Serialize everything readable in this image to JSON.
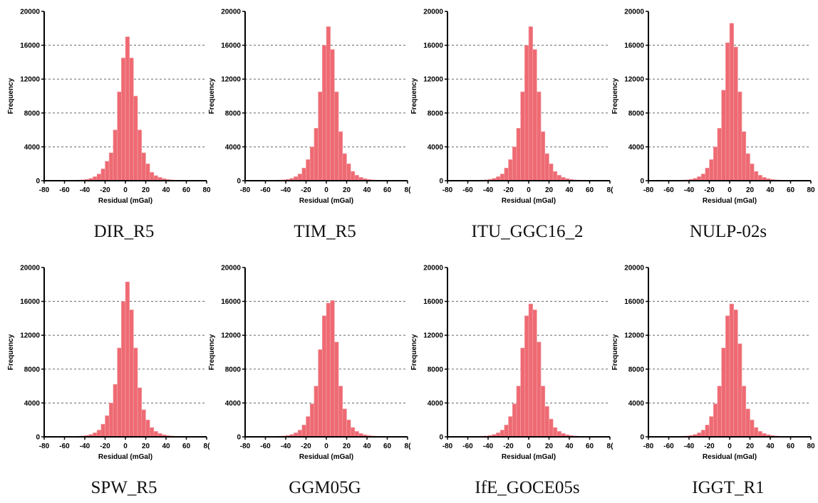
{
  "chart_data": [
    {
      "type": "bar",
      "title": "DIR_R5",
      "xlabel": "Residual (mGal)",
      "ylabel": "Frequency",
      "xlim": [
        -80,
        80
      ],
      "ylim": [
        0,
        20000
      ],
      "xticks": [
        "-80",
        "-60",
        "-40",
        "-20",
        "0",
        "20",
        "40",
        "60",
        "80"
      ],
      "yticks": [
        "0",
        "4000",
        "8000",
        "12000",
        "16000",
        "20000"
      ],
      "grid": "horizontal dashed",
      "bin_width": 4,
      "bin_starts": [
        -80,
        -76,
        -72,
        -68,
        -64,
        -60,
        -56,
        -52,
        -48,
        -44,
        -40,
        -36,
        -32,
        -28,
        -24,
        -20,
        -16,
        -12,
        -8,
        -4,
        0,
        4,
        8,
        12,
        16,
        20,
        24,
        28,
        32,
        36,
        40,
        44,
        48,
        52,
        56,
        60,
        64,
        68,
        72,
        76
      ],
      "values": [
        10,
        15,
        20,
        25,
        30,
        40,
        50,
        60,
        80,
        110,
        170,
        280,
        480,
        800,
        1400,
        2300,
        3300,
        6000,
        10500,
        14500,
        17000,
        14500,
        10000,
        6000,
        3300,
        2000,
        1000,
        600,
        400,
        250,
        160,
        100,
        70,
        50,
        40,
        30,
        20,
        15,
        10,
        10
      ],
      "colors": {
        "bar": "#ee6a73",
        "bar_edge": "#f4a5ab"
      }
    },
    {
      "type": "bar",
      "title": "TIM_R5",
      "xlabel": "Residual (mGal)",
      "ylabel": "Frequency",
      "xlim": [
        -80,
        80
      ],
      "ylim": [
        0,
        20000
      ],
      "xticks": [
        "-80",
        "-60",
        "-40",
        "-20",
        "0",
        "20",
        "40",
        "60",
        "8("
      ],
      "yticks": [
        "0",
        "4000",
        "8000",
        "12000",
        "16000",
        "20000"
      ],
      "grid": "horizontal dashed",
      "bin_width": 4,
      "bin_starts": [
        -80,
        -76,
        -72,
        -68,
        -64,
        -60,
        -56,
        -52,
        -48,
        -44,
        -40,
        -36,
        -32,
        -28,
        -24,
        -20,
        -16,
        -12,
        -8,
        -4,
        0,
        4,
        8,
        12,
        16,
        20,
        24,
        28,
        32,
        36,
        40,
        44,
        48,
        52,
        56,
        60,
        64,
        68,
        72,
        76
      ],
      "values": [
        10,
        15,
        20,
        25,
        30,
        40,
        50,
        60,
        80,
        110,
        170,
        280,
        480,
        800,
        1500,
        2500,
        4000,
        6200,
        10500,
        16000,
        18200,
        15500,
        10500,
        5800,
        3200,
        2000,
        1100,
        650,
        400,
        250,
        160,
        100,
        70,
        50,
        40,
        30,
        20,
        15,
        10,
        10
      ],
      "colors": {
        "bar": "#ee6a73",
        "bar_edge": "#f4a5ab"
      }
    },
    {
      "type": "bar",
      "title": "ITU_GGC16_2",
      "xlabel": "Residual (mGal)",
      "ylabel": "Frequency",
      "xlim": [
        -80,
        80
      ],
      "ylim": [
        0,
        20000
      ],
      "xticks": [
        "-80",
        "-60",
        "-40",
        "-20",
        "0",
        "20",
        "40",
        "60",
        "8("
      ],
      "yticks": [
        "0",
        "4000",
        "8000",
        "12000",
        "16000",
        "20000"
      ],
      "grid": "horizontal dashed",
      "bin_width": 4,
      "bin_starts": [
        -80,
        -76,
        -72,
        -68,
        -64,
        -60,
        -56,
        -52,
        -48,
        -44,
        -40,
        -36,
        -32,
        -28,
        -24,
        -20,
        -16,
        -12,
        -8,
        -4,
        0,
        4,
        8,
        12,
        16,
        20,
        24,
        28,
        32,
        36,
        40,
        44,
        48,
        52,
        56,
        60,
        64,
        68,
        72,
        76
      ],
      "values": [
        10,
        15,
        20,
        25,
        30,
        40,
        50,
        60,
        80,
        110,
        170,
        280,
        480,
        800,
        1500,
        2500,
        4000,
        6200,
        10500,
        16000,
        18200,
        15500,
        10500,
        5800,
        3200,
        2000,
        1100,
        650,
        400,
        250,
        160,
        100,
        70,
        50,
        40,
        30,
        20,
        15,
        10,
        10
      ],
      "colors": {
        "bar": "#ee6a73",
        "bar_edge": "#f4a5ab"
      }
    },
    {
      "type": "bar",
      "title": "NULP-02s",
      "xlabel": "Residual (mGal)",
      "ylabel": "Frequency",
      "xlim": [
        -80,
        80
      ],
      "ylim": [
        0,
        20000
      ],
      "xticks": [
        "-80",
        "-60",
        "-40",
        "-20",
        "0",
        "20",
        "40",
        "60",
        "80"
      ],
      "yticks": [
        "0",
        "4000",
        "8000",
        "12000",
        "16000",
        "20000"
      ],
      "grid": "horizontal dashed",
      "bin_width": 4,
      "bin_starts": [
        -80,
        -76,
        -72,
        -68,
        -64,
        -60,
        -56,
        -52,
        -48,
        -44,
        -40,
        -36,
        -32,
        -28,
        -24,
        -20,
        -16,
        -12,
        -8,
        -4,
        0,
        4,
        8,
        12,
        16,
        20,
        24,
        28,
        32,
        36,
        40,
        44,
        48,
        52,
        56,
        60,
        64,
        68,
        72,
        76
      ],
      "values": [
        10,
        15,
        20,
        25,
        30,
        40,
        50,
        60,
        80,
        110,
        170,
        280,
        480,
        800,
        1500,
        2500,
        4000,
        6200,
        10700,
        16300,
        18600,
        15800,
        10500,
        5800,
        3200,
        2000,
        1100,
        650,
        400,
        250,
        160,
        100,
        70,
        50,
        40,
        30,
        20,
        15,
        10,
        10
      ],
      "colors": {
        "bar": "#ee6a73",
        "bar_edge": "#f4a5ab"
      }
    },
    {
      "type": "bar",
      "title": "SPW_R5",
      "xlabel": "Residual (mGal)",
      "ylabel": "Frequency",
      "xlim": [
        -80,
        80
      ],
      "ylim": [
        0,
        20000
      ],
      "xticks": [
        "-80",
        "-60",
        "-40",
        "-20",
        "0",
        "20",
        "40",
        "60",
        "8("
      ],
      "yticks": [
        "0",
        "4000",
        "8000",
        "12000",
        "16000",
        "20000"
      ],
      "grid": "horizontal dashed",
      "bin_width": 4,
      "bin_starts": [
        -80,
        -76,
        -72,
        -68,
        -64,
        -60,
        -56,
        -52,
        -48,
        -44,
        -40,
        -36,
        -32,
        -28,
        -24,
        -20,
        -16,
        -12,
        -8,
        -4,
        0,
        4,
        8,
        12,
        16,
        20,
        24,
        28,
        32,
        36,
        40,
        44,
        48,
        52,
        56,
        60,
        64,
        68,
        72,
        76
      ],
      "values": [
        10,
        15,
        20,
        25,
        30,
        40,
        50,
        60,
        80,
        110,
        170,
        280,
        480,
        800,
        1500,
        2500,
        4000,
        6200,
        10500,
        16000,
        18300,
        15000,
        10500,
        5800,
        3200,
        2000,
        1100,
        650,
        400,
        250,
        160,
        100,
        70,
        50,
        40,
        30,
        20,
        15,
        10,
        10
      ],
      "colors": {
        "bar": "#ee6a73",
        "bar_edge": "#f4a5ab"
      }
    },
    {
      "type": "bar",
      "title": "GGM05G",
      "xlabel": "Residual (mGal)",
      "ylabel": "Frequency",
      "xlim": [
        -80,
        80
      ],
      "ylim": [
        0,
        20000
      ],
      "xticks": [
        "-80",
        "-60",
        "-40",
        "-20",
        "0",
        "20",
        "40",
        "60",
        "8("
      ],
      "yticks": [
        "0",
        "4000",
        "8000",
        "12000",
        "16000",
        "20000"
      ],
      "grid": "horizontal dashed",
      "bin_width": 4,
      "bin_starts": [
        -80,
        -76,
        -72,
        -68,
        -64,
        -60,
        -56,
        -52,
        -48,
        -44,
        -40,
        -36,
        -32,
        -28,
        -24,
        -20,
        -16,
        -12,
        -8,
        -4,
        0,
        4,
        8,
        12,
        16,
        20,
        24,
        28,
        32,
        36,
        40,
        44,
        48,
        52,
        56,
        60,
        64,
        68,
        72,
        76
      ],
      "values": [
        10,
        15,
        20,
        25,
        30,
        40,
        50,
        60,
        80,
        110,
        170,
        280,
        480,
        800,
        1400,
        2400,
        3900,
        6000,
        10300,
        14300,
        15800,
        16100,
        11200,
        6000,
        3300,
        2000,
        1100,
        650,
        400,
        250,
        160,
        100,
        70,
        50,
        40,
        30,
        20,
        15,
        10,
        10
      ],
      "colors": {
        "bar": "#ee6a73",
        "bar_edge": "#f4a5ab"
      }
    },
    {
      "type": "bar",
      "title": "IfE_GOCE05s",
      "xlabel": "Residual (mGal)",
      "ylabel": "Frequency",
      "xlim": [
        -80,
        80
      ],
      "ylim": [
        0,
        20000
      ],
      "xticks": [
        "-80",
        "-60",
        "-40",
        "-20",
        "0",
        "20",
        "40",
        "60",
        "8("
      ],
      "yticks": [
        "0",
        "4000",
        "8000",
        "12000",
        "16000",
        "20000"
      ],
      "grid": "horizontal dashed",
      "bin_width": 4,
      "bin_starts": [
        -80,
        -76,
        -72,
        -68,
        -64,
        -60,
        -56,
        -52,
        -48,
        -44,
        -40,
        -36,
        -32,
        -28,
        -24,
        -20,
        -16,
        -12,
        -8,
        -4,
        0,
        4,
        8,
        12,
        16,
        20,
        24,
        28,
        32,
        36,
        40,
        44,
        48,
        52,
        56,
        60,
        64,
        68,
        72,
        76
      ],
      "values": [
        10,
        15,
        20,
        25,
        30,
        40,
        50,
        60,
        80,
        110,
        170,
        280,
        480,
        800,
        1400,
        2400,
        3900,
        6000,
        10500,
        14300,
        15700,
        15000,
        11200,
        6000,
        3600,
        2100,
        1100,
        650,
        400,
        250,
        160,
        100,
        70,
        50,
        40,
        30,
        20,
        15,
        10,
        10
      ],
      "colors": {
        "bar": "#ee6a73",
        "bar_edge": "#f4a5ab"
      }
    },
    {
      "type": "bar",
      "title": "IGGT_R1",
      "xlabel": "Residual (mGal)",
      "ylabel": "Frequency",
      "xlim": [
        -80,
        80
      ],
      "ylim": [
        0,
        20000
      ],
      "xticks": [
        "-80",
        "-60",
        "-40",
        "-20",
        "0",
        "20",
        "40",
        "60",
        "80"
      ],
      "yticks": [
        "0",
        "4000",
        "8000",
        "12000",
        "16000",
        "20000"
      ],
      "grid": "horizontal dashed",
      "bin_width": 4,
      "bin_starts": [
        -80,
        -76,
        -72,
        -68,
        -64,
        -60,
        -56,
        -52,
        -48,
        -44,
        -40,
        -36,
        -32,
        -28,
        -24,
        -20,
        -16,
        -12,
        -8,
        -4,
        0,
        4,
        8,
        12,
        16,
        20,
        24,
        28,
        32,
        36,
        40,
        44,
        48,
        52,
        56,
        60,
        64,
        68,
        72,
        76
      ],
      "values": [
        10,
        15,
        20,
        25,
        30,
        40,
        50,
        60,
        80,
        110,
        170,
        280,
        480,
        800,
        1400,
        2400,
        3900,
        6000,
        10500,
        14300,
        15700,
        15000,
        11000,
        6000,
        3300,
        2000,
        1100,
        650,
        400,
        250,
        160,
        100,
        70,
        50,
        40,
        30,
        20,
        15,
        10,
        10
      ],
      "colors": {
        "bar": "#ee6a73",
        "bar_edge": "#f4a5ab"
      }
    }
  ]
}
